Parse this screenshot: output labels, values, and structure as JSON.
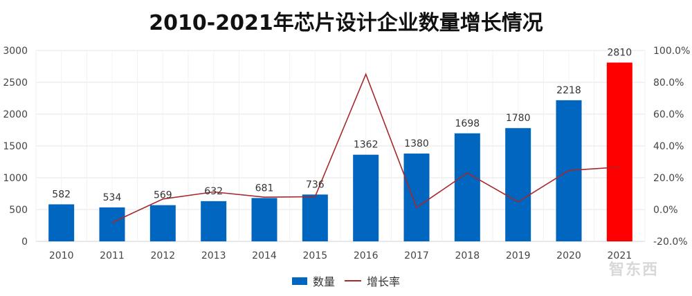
{
  "title": "2010-2021年芯片设计企业数量增长情况",
  "legend": {
    "bar_label": "数量",
    "line_label": "增长率"
  },
  "watermark": "智东西",
  "colors": {
    "bar": "#0066bf",
    "bar_highlight": "#ff0000",
    "line": "#a5282d",
    "grid": "#e6e6e6"
  },
  "chart_data": {
    "type": "bar",
    "title": "2010-2021年芯片设计企业数量增长情况",
    "xlabel": "",
    "ylabel": "",
    "categories": [
      "2010",
      "2011",
      "2012",
      "2013",
      "2014",
      "2015",
      "2016",
      "2017",
      "2018",
      "2019",
      "2020",
      "2021"
    ],
    "series": [
      {
        "name": "数量",
        "type": "bar",
        "axis": "left",
        "values": [
          582,
          534,
          569,
          632,
          681,
          736,
          1362,
          1380,
          1698,
          1780,
          2218,
          2810
        ]
      },
      {
        "name": "增长率",
        "type": "line",
        "axis": "right",
        "unit": "%",
        "values": [
          null,
          -8.2,
          6.6,
          11.1,
          7.8,
          8.1,
          85.1,
          1.3,
          23.0,
          4.8,
          24.6,
          26.7
        ]
      }
    ],
    "ylim": [
      0,
      3000
    ],
    "yticks": [
      0,
      500,
      1000,
      1500,
      2000,
      2500,
      3000
    ],
    "y2lim": [
      -20,
      100
    ],
    "y2ticks": [
      "-20.0%",
      "0.0%",
      "20.0%",
      "40.0%",
      "60.0%",
      "80.0%",
      "100.0%"
    ],
    "highlight_category": "2021",
    "grid": true,
    "legend_position": "bottom"
  }
}
